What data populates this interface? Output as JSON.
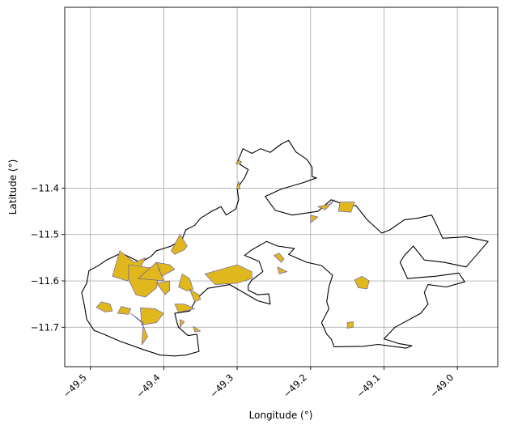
{
  "chart_data": {
    "type": "map",
    "xlabel": "Longitude (°)",
    "ylabel": "Latitude (°)",
    "xlim": [
      -49.535,
      -48.945
    ],
    "ylim": [
      -11.785,
      -11.01
    ],
    "grid": true,
    "x_ticks": [
      -49.5,
      -49.4,
      -49.3,
      -49.2,
      -49.1,
      -49.0
    ],
    "x_tick_labels": [
      "−49.5",
      "−49.4",
      "−49.3",
      "−49.2",
      "−49.1",
      "−49.0"
    ],
    "y_ticks": [
      -11.4,
      -11.5,
      -11.6,
      -11.7
    ],
    "y_tick_labels": [
      "−11.4",
      "−11.5",
      "−11.6",
      "−11.7"
    ],
    "colors": {
      "boundary": "#000000",
      "patch_fill": "#e0b81d",
      "patch_edge": "#5a4fb0",
      "grid": "#b0b0b0"
    },
    "boundary": [
      [
        -49.3,
        -11.345
      ],
      [
        -49.292,
        -11.315
      ],
      [
        -49.28,
        -11.325
      ],
      [
        -49.268,
        -11.315
      ],
      [
        -49.255,
        -11.323
      ],
      [
        -49.24,
        -11.305
      ],
      [
        -49.23,
        -11.297
      ],
      [
        -49.22,
        -11.322
      ],
      [
        -49.205,
        -11.338
      ],
      [
        -49.198,
        -11.355
      ],
      [
        -49.198,
        -11.375
      ],
      [
        -49.192,
        -11.378
      ],
      [
        -49.21,
        -11.388
      ],
      [
        -49.24,
        -11.402
      ],
      [
        -49.262,
        -11.418
      ],
      [
        -49.248,
        -11.448
      ],
      [
        -49.225,
        -11.458
      ],
      [
        -49.19,
        -11.45
      ],
      [
        -49.172,
        -11.425
      ],
      [
        -49.158,
        -11.433
      ],
      [
        -49.138,
        -11.438
      ],
      [
        -49.123,
        -11.468
      ],
      [
        -49.103,
        -11.497
      ],
      [
        -49.092,
        -11.49
      ],
      [
        -49.072,
        -11.468
      ],
      [
        -49.055,
        -11.465
      ],
      [
        -49.035,
        -11.458
      ],
      [
        -49.028,
        -11.48
      ],
      [
        -49.02,
        -11.508
      ],
      [
        -48.988,
        -11.505
      ],
      [
        -48.958,
        -11.515
      ],
      [
        -48.988,
        -11.57
      ],
      [
        -49.018,
        -11.56
      ],
      [
        -49.045,
        -11.555
      ],
      [
        -49.06,
        -11.525
      ],
      [
        -49.072,
        -11.545
      ],
      [
        -49.078,
        -11.56
      ],
      [
        -49.068,
        -11.595
      ],
      [
        -49.03,
        -11.59
      ],
      [
        -48.998,
        -11.583
      ],
      [
        -48.99,
        -11.602
      ],
      [
        -49.015,
        -11.613
      ],
      [
        -49.04,
        -11.608
      ],
      [
        -49.045,
        -11.625
      ],
      [
        -49.04,
        -11.65
      ],
      [
        -49.05,
        -11.67
      ],
      [
        -49.085,
        -11.7
      ],
      [
        -49.1,
        -11.725
      ],
      [
        -49.08,
        -11.735
      ],
      [
        -49.062,
        -11.74
      ],
      [
        -49.07,
        -11.745
      ],
      [
        -49.108,
        -11.737
      ],
      [
        -49.128,
        -11.741
      ],
      [
        -49.168,
        -11.742
      ],
      [
        -49.172,
        -11.725
      ],
      [
        -49.178,
        -11.715
      ],
      [
        -49.185,
        -11.69
      ],
      [
        -49.175,
        -11.66
      ],
      [
        -49.178,
        -11.645
      ],
      [
        -49.175,
        -11.613
      ],
      [
        -49.17,
        -11.588
      ],
      [
        -49.185,
        -11.567
      ],
      [
        -49.205,
        -11.56
      ],
      [
        -49.23,
        -11.543
      ],
      [
        -49.222,
        -11.53
      ],
      [
        -49.245,
        -11.525
      ],
      [
        -49.26,
        -11.515
      ],
      [
        -49.28,
        -11.533
      ],
      [
        -49.29,
        -11.545
      ],
      [
        -49.27,
        -11.558
      ],
      [
        -49.265,
        -11.58
      ],
      [
        -49.28,
        -11.598
      ],
      [
        -49.285,
        -11.61
      ],
      [
        -49.285,
        -11.62
      ],
      [
        -49.272,
        -11.63
      ],
      [
        -49.257,
        -11.628
      ],
      [
        -49.255,
        -11.65
      ],
      [
        -49.272,
        -11.643
      ],
      [
        -49.31,
        -11.608
      ],
      [
        -49.34,
        -11.616
      ],
      [
        -49.355,
        -11.638
      ],
      [
        -49.365,
        -11.665
      ],
      [
        -49.385,
        -11.67
      ],
      [
        -49.382,
        -11.69
      ],
      [
        -49.38,
        -11.7
      ],
      [
        -49.367,
        -11.718
      ],
      [
        -49.355,
        -11.715
      ],
      [
        -49.352,
        -11.752
      ],
      [
        -49.37,
        -11.76
      ],
      [
        -49.385,
        -11.762
      ],
      [
        -49.405,
        -11.76
      ],
      [
        -49.43,
        -11.747
      ],
      [
        -49.46,
        -11.73
      ],
      [
        -49.482,
        -11.715
      ],
      [
        -49.495,
        -11.707
      ],
      [
        -49.505,
        -11.683
      ],
      [
        -49.508,
        -11.655
      ],
      [
        -49.512,
        -11.625
      ],
      [
        -49.505,
        -11.605
      ],
      [
        -49.502,
        -11.578
      ],
      [
        -49.49,
        -11.568
      ],
      [
        -49.478,
        -11.555
      ],
      [
        -49.458,
        -11.54
      ],
      [
        -49.432,
        -11.56
      ],
      [
        -49.418,
        -11.548
      ],
      [
        -49.41,
        -11.535
      ],
      [
        -49.39,
        -11.525
      ],
      [
        -49.375,
        -11.51
      ],
      [
        -49.37,
        -11.49
      ],
      [
        -49.358,
        -11.48
      ],
      [
        -49.35,
        -11.465
      ],
      [
        -49.335,
        -11.45
      ],
      [
        -49.322,
        -11.44
      ],
      [
        -49.315,
        -11.458
      ],
      [
        -49.302,
        -11.445
      ],
      [
        -49.298,
        -11.425
      ],
      [
        -49.3,
        -11.4
      ],
      [
        -49.29,
        -11.378
      ],
      [
        -49.285,
        -11.36
      ],
      [
        -49.3,
        -11.345
      ]
    ],
    "patches": [
      [
        [
          -49.298,
          -11.34
        ],
        [
          -49.302,
          -11.347
        ],
        [
          -49.296,
          -11.349
        ],
        [
          -49.294,
          -11.343
        ]
      ],
      [
        [
          -49.298,
          -11.385
        ],
        [
          -49.301,
          -11.402
        ],
        [
          -49.296,
          -11.402
        ]
      ],
      [
        [
          -49.175,
          -11.435
        ],
        [
          -49.167,
          -11.425
        ],
        [
          -49.18,
          -11.447
        ],
        [
          -49.19,
          -11.44
        ]
      ],
      [
        [
          -49.16,
          -11.43
        ],
        [
          -49.14,
          -11.43
        ],
        [
          -49.145,
          -11.452
        ],
        [
          -49.162,
          -11.45
        ]
      ],
      [
        [
          -49.2,
          -11.458
        ],
        [
          -49.19,
          -11.462
        ],
        [
          -49.2,
          -11.475
        ]
      ],
      [
        [
          -49.39,
          -11.535
        ],
        [
          -49.378,
          -11.5
        ],
        [
          -49.368,
          -11.525
        ],
        [
          -49.372,
          -11.533
        ],
        [
          -49.385,
          -11.543
        ]
      ],
      [
        [
          -49.46,
          -11.535
        ],
        [
          -49.44,
          -11.56
        ],
        [
          -49.425,
          -11.55
        ],
        [
          -49.433,
          -11.575
        ],
        [
          -49.45,
          -11.6
        ],
        [
          -49.47,
          -11.59
        ]
      ],
      [
        [
          -49.41,
          -11.56
        ],
        [
          -49.392,
          -11.565
        ],
        [
          -49.385,
          -11.575
        ],
        [
          -49.403,
          -11.59
        ],
        [
          -49.413,
          -11.578
        ]
      ],
      [
        [
          -49.448,
          -11.565
        ],
        [
          -49.448,
          -11.598
        ],
        [
          -49.438,
          -11.63
        ],
        [
          -49.425,
          -11.635
        ],
        [
          -49.41,
          -11.615
        ],
        [
          -49.405,
          -11.575
        ]
      ],
      [
        [
          -49.435,
          -11.595
        ],
        [
          -49.4,
          -11.6
        ],
        [
          -49.41,
          -11.56
        ]
      ],
      [
        [
          -49.3,
          -11.565
        ],
        [
          -49.28,
          -11.58
        ],
        [
          -49.28,
          -11.595
        ],
        [
          -49.3,
          -11.605
        ],
        [
          -49.33,
          -11.608
        ],
        [
          -49.344,
          -11.585
        ]
      ],
      [
        [
          -49.375,
          -11.585
        ],
        [
          -49.365,
          -11.595
        ],
        [
          -49.36,
          -11.618
        ],
        [
          -49.368,
          -11.622
        ],
        [
          -49.38,
          -11.613
        ]
      ],
      [
        [
          -49.41,
          -11.605
        ],
        [
          -49.398,
          -11.63
        ],
        [
          -49.392,
          -11.62
        ],
        [
          -49.392,
          -11.6
        ]
      ],
      [
        [
          -49.365,
          -11.618
        ],
        [
          -49.352,
          -11.63
        ],
        [
          -49.35,
          -11.64
        ],
        [
          -49.358,
          -11.645
        ]
      ],
      [
        [
          -49.485,
          -11.645
        ],
        [
          -49.473,
          -11.65
        ],
        [
          -49.47,
          -11.665
        ],
        [
          -49.48,
          -11.667
        ],
        [
          -49.492,
          -11.657
        ]
      ],
      [
        [
          -49.458,
          -11.655
        ],
        [
          -49.445,
          -11.66
        ],
        [
          -49.448,
          -11.672
        ],
        [
          -49.463,
          -11.67
        ]
      ],
      [
        [
          -49.432,
          -11.658
        ],
        [
          -49.412,
          -11.66
        ],
        [
          -49.4,
          -11.67
        ],
        [
          -49.41,
          -11.69
        ],
        [
          -49.43,
          -11.695
        ]
      ],
      [
        [
          -49.445,
          -11.67
        ],
        [
          -49.43,
          -11.69
        ],
        [
          -49.422,
          -11.72
        ],
        [
          -49.43,
          -11.738
        ],
        [
          -49.428,
          -11.69
        ]
      ],
      [
        [
          -49.385,
          -11.65
        ],
        [
          -49.372,
          -11.65
        ],
        [
          -49.358,
          -11.66
        ],
        [
          -49.38,
          -11.668
        ]
      ],
      [
        [
          -49.378,
          -11.683
        ],
        [
          -49.372,
          -11.688
        ],
        [
          -49.378,
          -11.7
        ]
      ],
      [
        [
          -49.36,
          -11.698
        ],
        [
          -49.358,
          -11.71
        ],
        [
          -49.35,
          -11.708
        ]
      ],
      [
        [
          -49.25,
          -11.545
        ],
        [
          -49.243,
          -11.54
        ],
        [
          -49.236,
          -11.553
        ],
        [
          -49.24,
          -11.56
        ]
      ],
      [
        [
          -49.245,
          -11.57
        ],
        [
          -49.232,
          -11.58
        ],
        [
          -49.243,
          -11.585
        ]
      ],
      [
        [
          -49.14,
          -11.598
        ],
        [
          -49.13,
          -11.59
        ],
        [
          -49.12,
          -11.6
        ],
        [
          -49.123,
          -11.617
        ],
        [
          -49.135,
          -11.615
        ]
      ],
      [
        [
          -49.15,
          -11.69
        ],
        [
          -49.142,
          -11.688
        ],
        [
          -49.142,
          -11.7
        ],
        [
          -49.15,
          -11.702
        ]
      ]
    ]
  }
}
